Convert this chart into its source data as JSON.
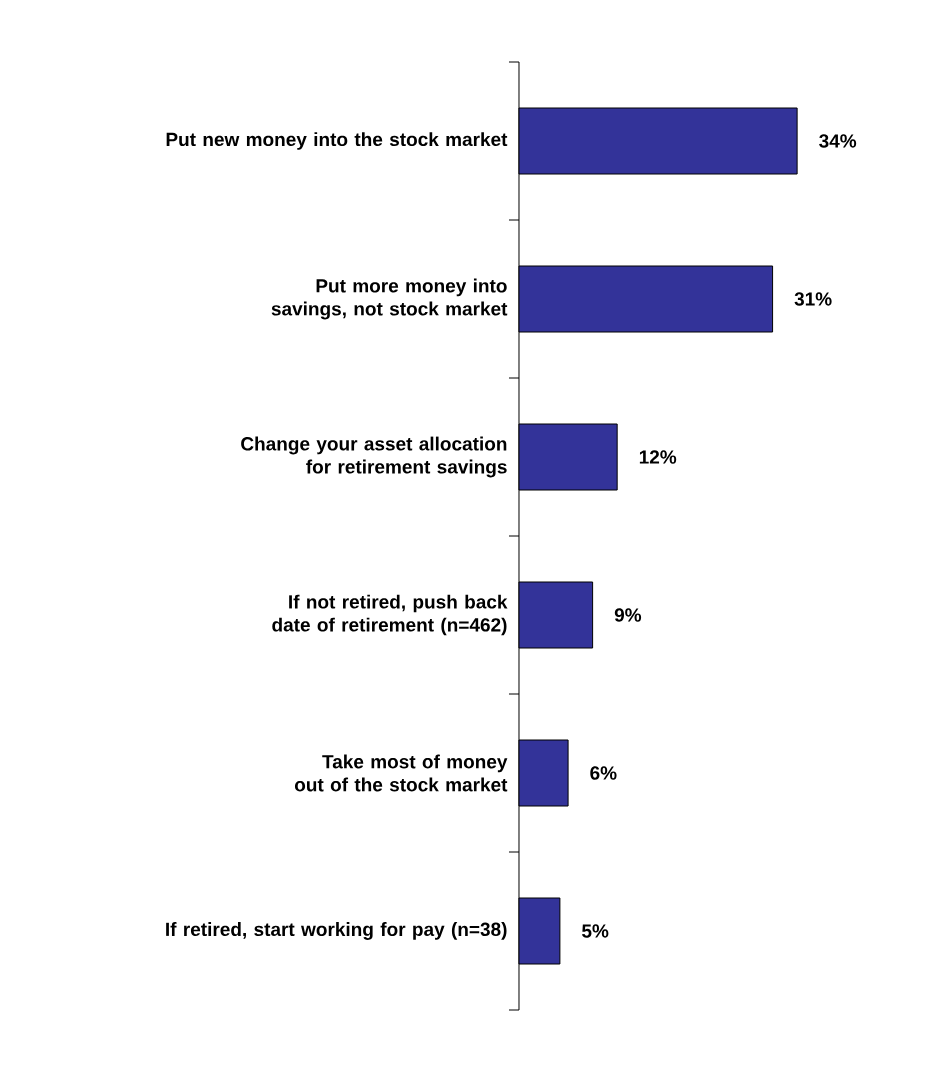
{
  "chart_data": {
    "type": "bar",
    "orientation": "horizontal",
    "color": "#333399",
    "categories": [
      "Put new money into the stock market",
      "Put more money into savings, not stock market",
      "Change your asset allocation for retirement savings",
      "If not retired, push back date of retirement (n=462)",
      "Take most of money out of the stock market",
      "If retired, start working for pay (n=38)"
    ],
    "values": [
      34,
      31,
      12,
      9,
      6,
      5
    ],
    "value_labels": [
      "34%",
      "31%",
      "12%",
      "9%",
      "6%",
      "5%"
    ]
  }
}
